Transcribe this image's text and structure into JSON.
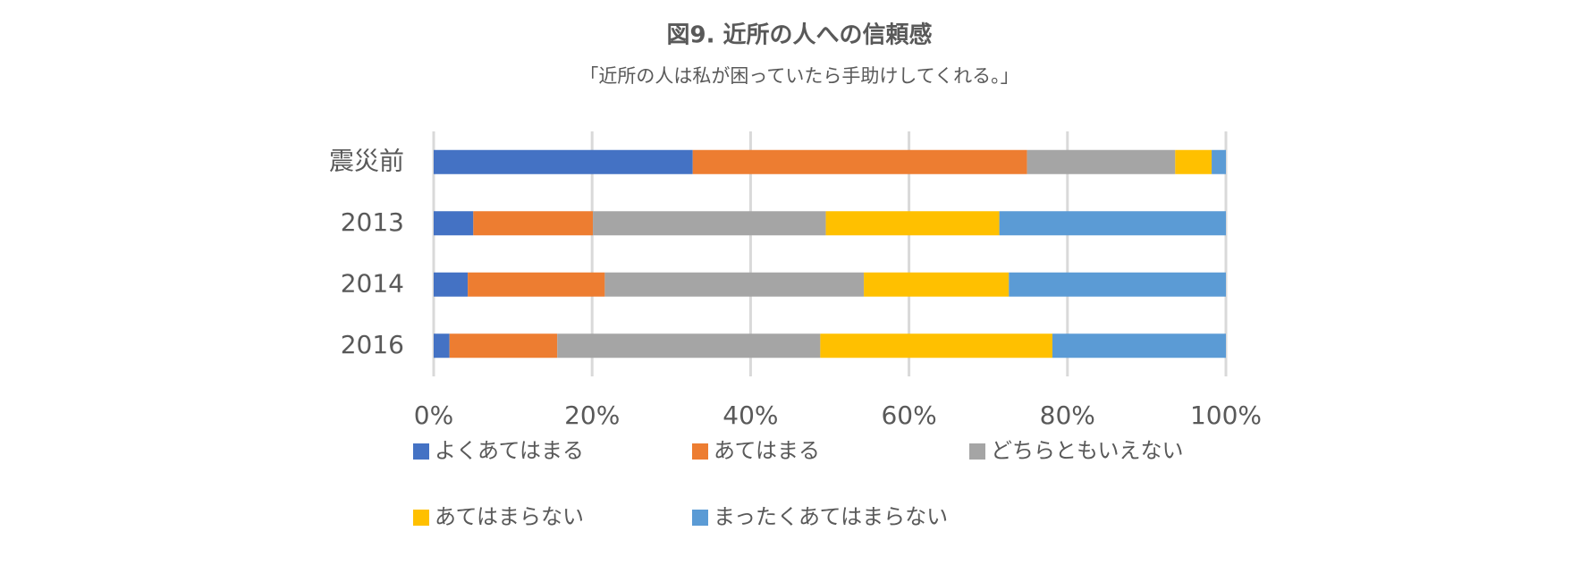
{
  "chart_data": {
    "type": "stacked-barh",
    "title": "図9. 近所の人への信頼感",
    "subtitle": "「近所の人は私が困っていたら手助けしてくれる。」",
    "categories": [
      "震災前",
      "2013",
      "2014",
      "2016"
    ],
    "series": [
      {
        "name": "よくあてはまる",
        "color": "#4472c4",
        "values": [
          32.7,
          5.0,
          4.3,
          2.0
        ]
      },
      {
        "name": "あてはまる",
        "color": "#ed7d31",
        "values": [
          42.2,
          15.1,
          17.3,
          13.6
        ]
      },
      {
        "name": "どちらともいえない",
        "color": "#a5a5a5",
        "values": [
          18.7,
          29.4,
          32.7,
          33.2
        ]
      },
      {
        "name": "あてはまらない",
        "color": "#ffc000",
        "values": [
          4.6,
          21.9,
          18.3,
          29.3
        ]
      },
      {
        "name": "まったくあてはまらない",
        "color": "#5b9bd5",
        "values": [
          1.8,
          28.6,
          27.4,
          21.9
        ]
      }
    ],
    "xlim": [
      0,
      100
    ],
    "xticks": [
      {
        "value": 0,
        "label": "0%"
      },
      {
        "value": 20,
        "label": "20%"
      },
      {
        "value": 40,
        "label": "40%"
      },
      {
        "value": 60,
        "label": "60%"
      },
      {
        "value": 80,
        "label": "80%"
      },
      {
        "value": 100,
        "label": "100%"
      }
    ],
    "grid": true
  }
}
